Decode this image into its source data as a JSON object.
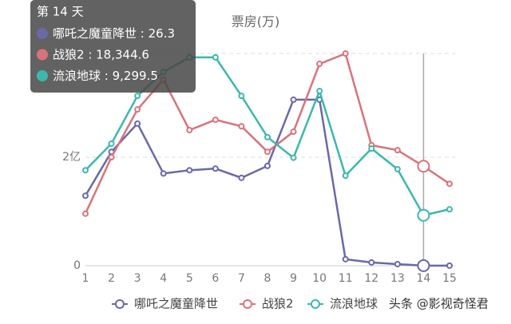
{
  "chart_data": {
    "type": "line",
    "title": "票房(万)",
    "categories": [
      "1",
      "2",
      "3",
      "4",
      "5",
      "6",
      "7",
      "8",
      "9",
      "10",
      "11",
      "12",
      "13",
      "14",
      "15"
    ],
    "series": [
      {
        "name": "哪吒之魔童降世",
        "color": "#6a69a8",
        "values": [
          12900,
          21000,
          26200,
          17000,
          17600,
          17900,
          16200,
          18400,
          30600,
          30600,
          1200,
          600,
          300,
          26.3,
          20
        ]
      },
      {
        "name": "战狼2",
        "color": "#d8737b",
        "values": [
          9600,
          20000,
          28800,
          34300,
          25000,
          26900,
          25700,
          21000,
          24700,
          37200,
          39100,
          22200,
          21300,
          18344.6,
          15100
        ]
      },
      {
        "name": "流浪地球",
        "color": "#3cb8ad",
        "values": [
          17600,
          22500,
          31300,
          35700,
          38400,
          38400,
          31300,
          23700,
          19900,
          32200,
          16600,
          21600,
          17800,
          9299.5,
          10400
        ]
      }
    ],
    "ylim": [
      0,
      40000
    ],
    "yticks": [
      0,
      {
        "value": 20000,
        "label": "2亿"
      }
    ],
    "grid": true,
    "tooltip": {
      "title": "第 14 天",
      "separator": " : ",
      "value_labels": [
        "26.3",
        "18,344.6",
        "9,299.5"
      ]
    },
    "watermark": "头条 @影视奇怪君"
  }
}
